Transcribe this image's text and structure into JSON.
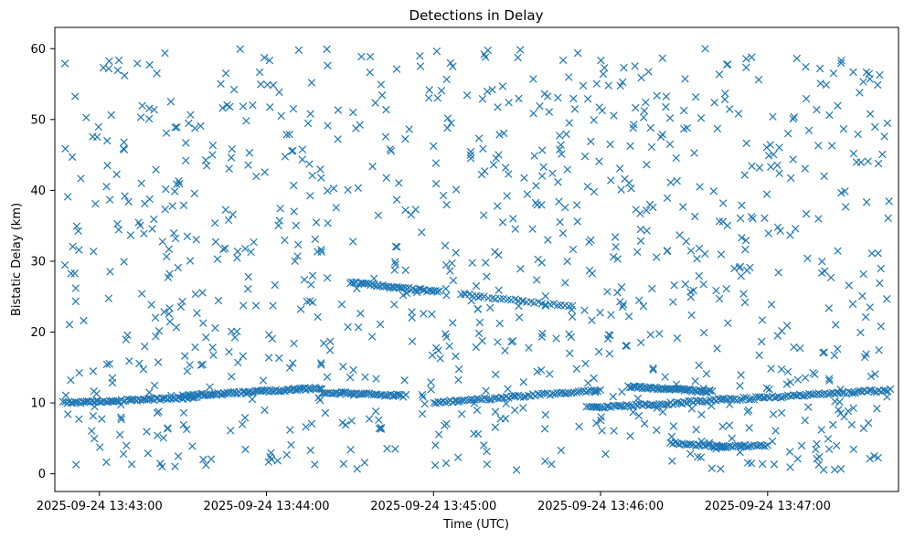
{
  "chart_data": {
    "type": "scatter",
    "title": "Detections in Delay",
    "xlabel": "Time (UTC)",
    "ylabel": "Bistatic Delay (km)",
    "xlim": [
      "2025-09-24 13:42:44",
      "2025-09-24 13:47:47"
    ],
    "ylim": [
      -2.5,
      63
    ],
    "xticks": [
      "2025-09-24 13:43:00",
      "2025-09-24 13:44:00",
      "2025-09-24 13:45:00",
      "2025-09-24 13:46:00",
      "2025-09-24 13:47:00"
    ],
    "yticks": [
      0,
      10,
      20,
      30,
      40,
      50,
      60
    ],
    "grid": false,
    "marker": "x",
    "color": "#1f77b4",
    "x_start": "2025-09-24 13:42:47",
    "x_end": "2025-09-24 13:47:44",
    "y_range": [
      0.5,
      60
    ],
    "random_point_count": 980,
    "tracks": [
      {
        "start": "2025-09-24 13:42:47",
        "end": "2025-09-24 13:43:35",
        "y_start": 10.0,
        "y_end": 10.8,
        "count": 70
      },
      {
        "start": "2025-09-24 13:43:30",
        "end": "2025-09-24 13:44:20",
        "y_start": 11.0,
        "y_end": 12.1,
        "count": 80
      },
      {
        "start": "2025-09-24 13:44:20",
        "end": "2025-09-24 13:44:50",
        "y_start": 11.5,
        "y_end": 11.0,
        "count": 40
      },
      {
        "start": "2025-09-24 13:44:30",
        "end": "2025-09-24 13:45:02",
        "y_start": 27.0,
        "y_end": 25.7,
        "count": 45
      },
      {
        "start": "2025-09-24 13:45:00",
        "end": "2025-09-24 13:46:00",
        "y_start": 10.0,
        "y_end": 11.8,
        "count": 70
      },
      {
        "start": "2025-09-24 13:45:10",
        "end": "2025-09-24 13:45:50",
        "y_start": 25.3,
        "y_end": 23.6,
        "count": 30
      },
      {
        "start": "2025-09-24 13:45:55",
        "end": "2025-09-24 13:46:30",
        "y_start": 9.3,
        "y_end": 10.0,
        "count": 45
      },
      {
        "start": "2025-09-24 13:46:10",
        "end": "2025-09-24 13:46:40",
        "y_start": 12.3,
        "y_end": 11.6,
        "count": 55
      },
      {
        "start": "2025-09-24 13:46:25",
        "end": "2025-09-24 13:46:45",
        "y_start": 4.3,
        "y_end": 3.8,
        "count": 25
      },
      {
        "start": "2025-09-24 13:46:40",
        "end": "2025-09-24 13:47:00",
        "y_start": 3.8,
        "y_end": 4.0,
        "count": 25
      },
      {
        "start": "2025-09-24 13:46:30",
        "end": "2025-09-24 13:47:44",
        "y_start": 10.1,
        "y_end": 11.8,
        "count": 90
      }
    ]
  }
}
